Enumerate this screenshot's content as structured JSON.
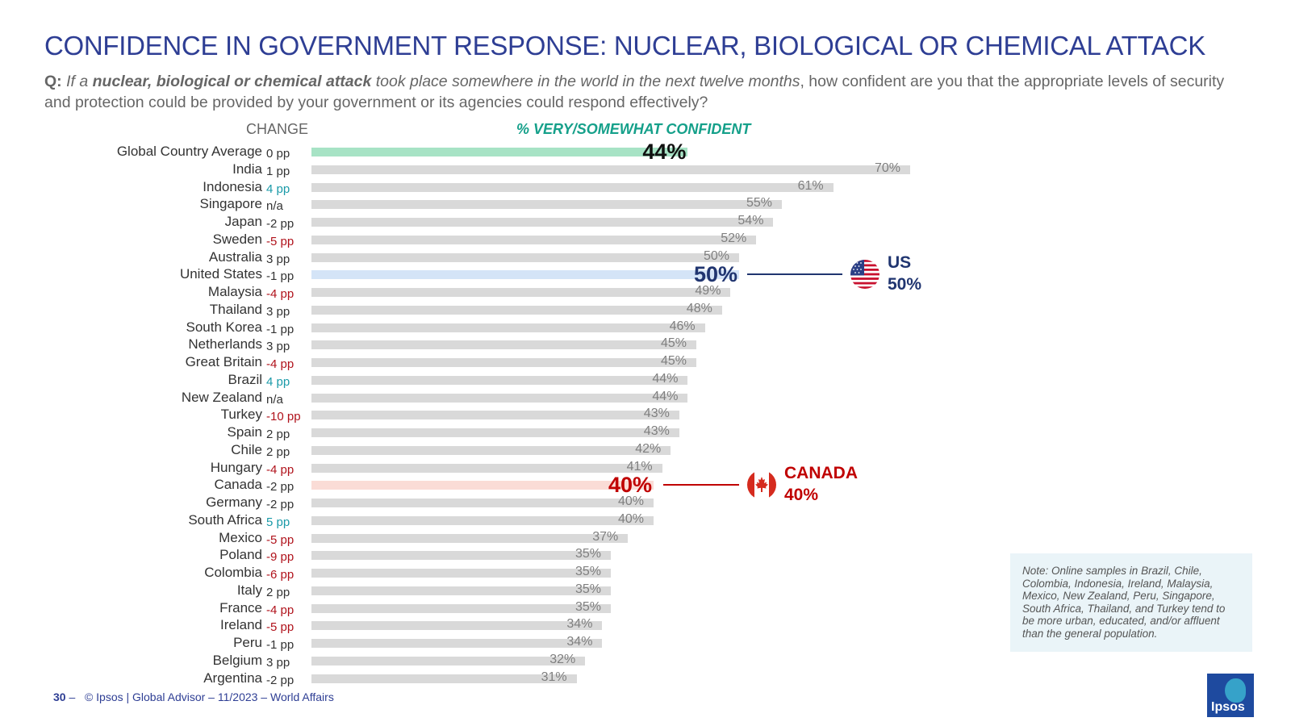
{
  "title": "CONFIDENCE IN GOVERNMENT RESPONSE: NUCLEAR, BIOLOGICAL OR CHEMICAL ATTACK",
  "question": {
    "label": "Q:",
    "italic_pre": "If a ",
    "italic_bold": "nuclear, biological or chemical attack",
    "italic_post": " took place somewhere in the world in the next twelve months",
    "rest": ", how confident are you that the appropriate levels of security and protection could be provided by your government or its agencies could respond effectively?"
  },
  "headers": {
    "change": "CHANGE",
    "metric": "% VERY/SOMEWHAT CONFIDENT"
  },
  "colors": {
    "bar": "#d9d9d9",
    "global_bar": "#a7e3c5",
    "us_bar": "#d4e4f7",
    "canada_bar": "#fadcd6",
    "us_accent": "#203570",
    "canada_accent": "#c00000",
    "positive_change": "#1a9aa8",
    "negative_change": "#b0121b"
  },
  "chart_data": {
    "type": "bar",
    "orientation": "horizontal",
    "title": "% VERY/SOMEWHAT CONFIDENT",
    "unit": "%",
    "xlim": [
      0,
      100
    ],
    "categories": [
      "Global Country Average",
      "India",
      "Indonesia",
      "Singapore",
      "Japan",
      "Sweden",
      "Australia",
      "United States",
      "Malaysia",
      "Thailand",
      "South Korea",
      "Netherlands",
      "Great Britain",
      "Brazil",
      "New Zealand",
      "Turkey",
      "Spain",
      "Chile",
      "Hungary",
      "Canada",
      "Germany",
      "South Africa",
      "Mexico",
      "Poland",
      "Colombia",
      "Italy",
      "France",
      "Ireland",
      "Peru",
      "Belgium",
      "Argentina"
    ],
    "values": [
      44,
      70,
      61,
      55,
      54,
      52,
      50,
      50,
      49,
      48,
      46,
      45,
      45,
      44,
      44,
      43,
      43,
      42,
      41,
      40,
      40,
      40,
      37,
      35,
      35,
      35,
      35,
      34,
      34,
      32,
      31
    ],
    "value_labels": [
      "44%",
      "70%",
      "61%",
      "55%",
      "54%",
      "52%",
      "50%",
      "50%",
      "49%",
      "48%",
      "46%",
      "45%",
      "45%",
      "44%",
      "44%",
      "43%",
      "43%",
      "42%",
      "41%",
      "40%",
      "40%",
      "40%",
      "37%",
      "35%",
      "35%",
      "35%",
      "35%",
      "34%",
      "34%",
      "32%",
      "31%"
    ],
    "change": [
      "0 pp",
      "1 pp",
      "4 pp",
      "n/a",
      "-2 pp",
      "-5 pp",
      "3 pp",
      "-1 pp",
      "-4 pp",
      "3 pp",
      "-1 pp",
      "3 pp",
      "-4 pp",
      "4 pp",
      "n/a",
      "-10 pp",
      "2 pp",
      "2 pp",
      "-4 pp",
      "-2 pp",
      "-2 pp",
      "5 pp",
      "-5 pp",
      "-9 pp",
      "-6 pp",
      "2 pp",
      "-4 pp",
      "-5 pp",
      "-1 pp",
      "3 pp",
      "-2 pp"
    ],
    "change_trend": [
      "neutral",
      "neutral",
      "positive",
      "neutral",
      "neutral",
      "negative",
      "neutral",
      "neutral",
      "negative",
      "neutral",
      "neutral",
      "neutral",
      "negative",
      "positive",
      "neutral",
      "negative",
      "neutral",
      "neutral",
      "negative",
      "neutral",
      "neutral",
      "positive",
      "negative",
      "negative",
      "negative",
      "neutral",
      "negative",
      "negative",
      "neutral",
      "neutral",
      "neutral"
    ],
    "highlights": {
      "Global Country Average": "global",
      "United States": "us",
      "Canada": "canada"
    }
  },
  "callouts": {
    "us": {
      "label": "US",
      "value": "50%"
    },
    "canada": {
      "label": "CANADA",
      "value": "40%"
    }
  },
  "note": "Note: Online samples in Brazil, Chile, Colombia, Indonesia, Ireland, Malaysia, Mexico, New Zealand, Peru, Singapore, South Africa, Thailand, and Turkey tend to be more urban, educated, and/or affluent than the general population.",
  "footer": {
    "page": "30",
    "dash": "–",
    "text": "© Ipsos | Global Advisor – 11/2023 – World Affairs"
  },
  "logo_text": "Ipsos"
}
